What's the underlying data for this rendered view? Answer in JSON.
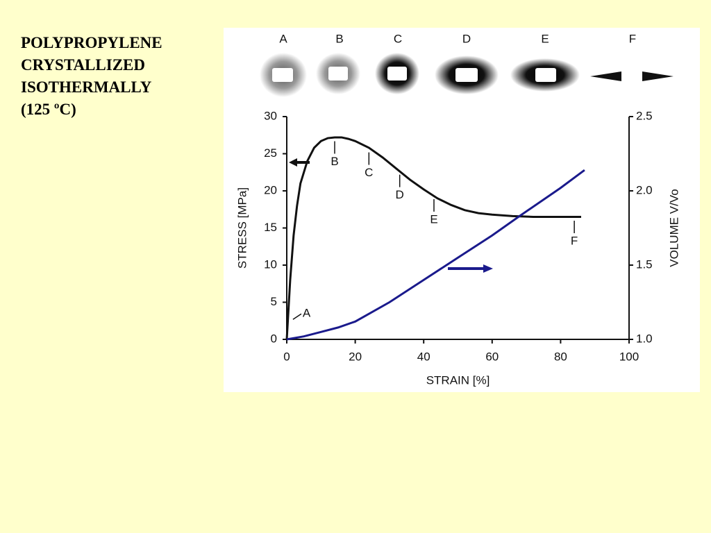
{
  "title_lines": [
    "POLYPROPYLENE",
    "CRYSTALLIZED",
    "ISOTHERMALLY",
    "(125 ºC)"
  ],
  "chart_data": {
    "type": "line",
    "patterns": [
      "A",
      "B",
      "C",
      "D",
      "E",
      "F"
    ],
    "x_label": "STRAIN [%]",
    "y_label": "STRESS [MPa]",
    "y2_label": "VOLUME V/Vo",
    "xlim": [
      0,
      100
    ],
    "xticks": [
      0,
      20,
      40,
      60,
      80,
      100
    ],
    "ylim": [
      0,
      30
    ],
    "yticks": [
      0,
      5,
      10,
      15,
      20,
      25,
      30
    ],
    "y2lim": [
      1,
      2.5
    ],
    "y2ticks": [
      {
        "value": 1,
        "label": "1.0"
      },
      1.5,
      {
        "value": 2,
        "label": "2.0"
      },
      2.5
    ],
    "series": [
      {
        "color": "#111111",
        "x": [
          0,
          1,
          2,
          3,
          4,
          6,
          8,
          10,
          12,
          14,
          16,
          18,
          20,
          24,
          28,
          32,
          36,
          40,
          44,
          48,
          52,
          56,
          60,
          66,
          72,
          80,
          86
        ],
        "values": [
          0,
          8,
          14,
          18,
          21,
          24,
          25.8,
          26.7,
          27.1,
          27.2,
          27.2,
          27,
          26.7,
          25.8,
          24.5,
          23,
          21.5,
          20.2,
          19,
          18.1,
          17.4,
          17,
          16.8,
          16.6,
          16.5,
          16.5,
          16.5
        ]
      },
      {
        "color": "#1a1a8c",
        "axis": "y2",
        "x": [
          0,
          5,
          10,
          15,
          20,
          30,
          40,
          50,
          60,
          68,
          80,
          87
        ],
        "values": [
          1,
          1.02,
          1.05,
          1.08,
          1.12,
          1.25,
          1.4,
          1.55,
          1.7,
          1.83,
          2.02,
          2.14
        ]
      }
    ],
    "annotations": [
      {
        "text": "A",
        "x": 1,
        "y": 2.5
      },
      {
        "text": "B",
        "x": 14,
        "y": 25
      },
      {
        "text": "C",
        "x": 24,
        "y": 23.5
      },
      {
        "text": "D",
        "x": 33,
        "y": 20.5
      },
      {
        "text": "E",
        "x": 43,
        "y": 17.2
      },
      {
        "text": "F",
        "x": 84,
        "y": 14.3
      }
    ]
  }
}
